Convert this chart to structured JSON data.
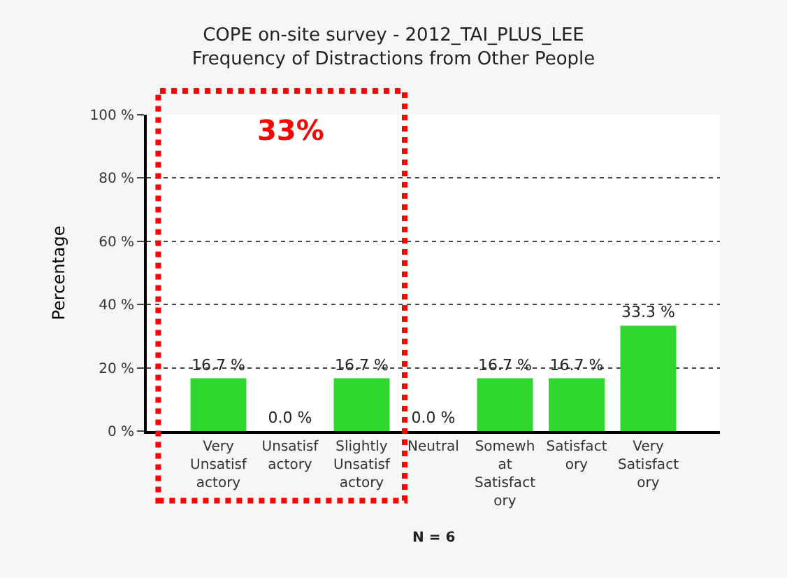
{
  "chart_data": {
    "type": "bar",
    "title": "COPE on-site survey - 2012_TAI_PLUS_LEE\nFrequency of Distractions from Other People",
    "ylabel": "Percentage",
    "categories": [
      "Very\nUnsatisf\nactory",
      "Unsatisf\nactory",
      "Slightly\nUnsatisf\nactory",
      "Neutral",
      "Somewh\nat\nSatisfact\nory",
      "Satisfact\nory",
      "Very\nSatisfact\nory"
    ],
    "values": [
      16.7,
      0.0,
      16.7,
      0.0,
      16.7,
      16.7,
      33.3
    ],
    "value_labels": [
      "16.7 %",
      "0.0 %",
      "16.7 %",
      "0.0 %",
      "16.7 %",
      "16.7 %",
      "33.3 %"
    ],
    "color": "#2ed62e",
    "ylim": [
      0,
      100
    ],
    "yticks": [
      {
        "value": 0,
        "label": "0 %"
      },
      {
        "value": 20,
        "label": "20 %"
      },
      {
        "value": 40,
        "label": "40 %"
      },
      {
        "value": 60,
        "label": "60 %"
      },
      {
        "value": 80,
        "label": "80 %"
      },
      {
        "value": 100,
        "label": "100 %"
      }
    ],
    "grid": "y",
    "annotations": [
      "33%",
      "N = 6"
    ]
  }
}
